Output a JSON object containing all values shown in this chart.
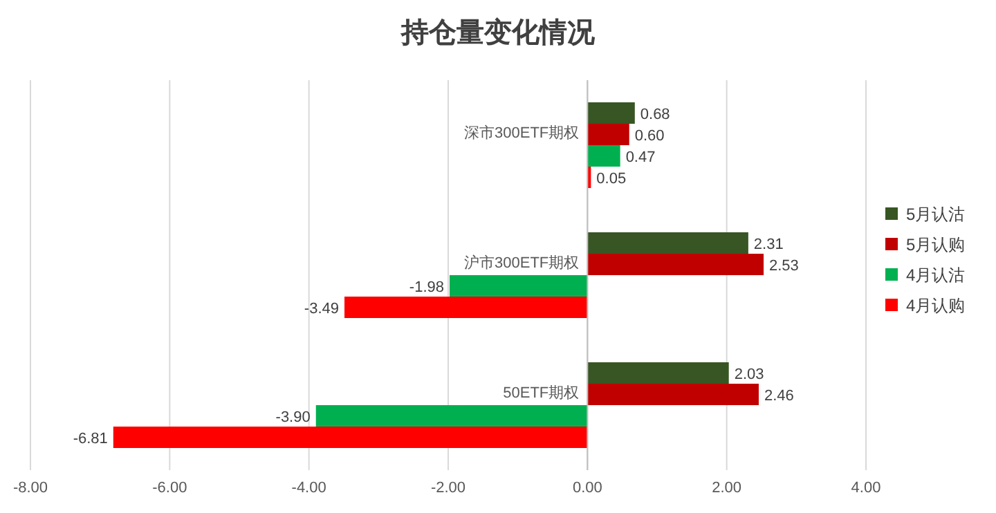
{
  "chart_data": {
    "type": "bar",
    "orientation": "horizontal",
    "title": "持仓量变化情况",
    "categories": [
      "深市300ETF期权",
      "沪市300ETF期权",
      "50ETF期权"
    ],
    "series": [
      {
        "name": "5月认沽",
        "color": "#375623",
        "values": [
          0.68,
          2.31,
          2.03
        ],
        "value_labels": [
          "0.68",
          "2.31",
          "2.03"
        ]
      },
      {
        "name": "5月认购",
        "color": "#c00000",
        "values": [
          0.6,
          2.53,
          2.46
        ],
        "value_labels": [
          "0.60",
          "2.53",
          "2.46"
        ]
      },
      {
        "name": "4月认沽",
        "color": "#00b050",
        "values": [
          0.47,
          -1.98,
          -3.9
        ],
        "value_labels": [
          "0.47",
          "-1.98",
          "-3.90"
        ]
      },
      {
        "name": "4月认购",
        "color": "#ff0000",
        "values": [
          0.05,
          -3.49,
          -6.81
        ],
        "value_labels": [
          "0.05",
          "-3.49",
          "-6.81"
        ]
      }
    ],
    "xlim": [
      -8,
      4
    ],
    "xticks": [
      {
        "value": -8,
        "label": "-8.00"
      },
      {
        "value": -6,
        "label": "-6.00"
      },
      {
        "value": -4,
        "label": "-4.00"
      },
      {
        "value": -2,
        "label": "-2.00"
      },
      {
        "value": 0,
        "label": "0.00"
      },
      {
        "value": 2,
        "label": "2.00"
      },
      {
        "value": 4,
        "label": "4.00"
      }
    ],
    "grid": "x",
    "legend": "right"
  }
}
